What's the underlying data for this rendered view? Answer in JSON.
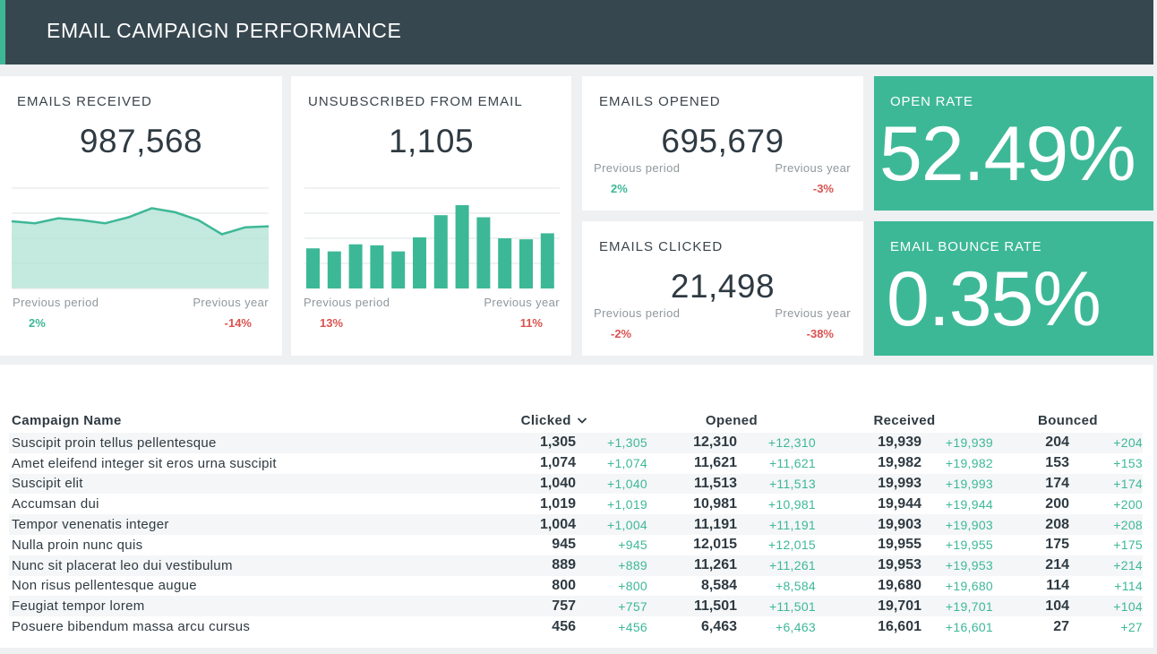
{
  "header": {
    "title": "EMAIL CAMPAIGN PERFORMANCE"
  },
  "colors": {
    "accent": "#3db897",
    "header_bg": "#37474f",
    "negative": "#d9534f"
  },
  "cards": {
    "received": {
      "label": "EMAILS RECEIVED",
      "value": "987,568",
      "prev_period_label": "Previous period",
      "prev_period_value": "2%",
      "prev_year_label": "Previous year",
      "prev_year_value": "-14%"
    },
    "unsubscribed": {
      "label": "UNSUBSCRIBED FROM EMAIL",
      "value": "1,105",
      "prev_period_label": "Previous period",
      "prev_period_value": "13%",
      "prev_year_label": "Previous year",
      "prev_year_value": "11%"
    },
    "opened": {
      "label": "EMAILS OPENED",
      "value": "695,679",
      "prev_period_label": "Previous period",
      "prev_period_value": "2%",
      "prev_year_label": "Previous year",
      "prev_year_value": "-3%"
    },
    "clicked": {
      "label": "EMAILS CLICKED",
      "value": "21,498",
      "prev_period_label": "Previous period",
      "prev_period_value": "-2%",
      "prev_year_label": "Previous year",
      "prev_year_value": "-38%"
    },
    "open_rate": {
      "label": "OPEN RATE",
      "value": "52.49%"
    },
    "bounce_rate": {
      "label": "EMAIL BOUNCE RATE",
      "value": "0.35%"
    }
  },
  "chart_data": [
    {
      "type": "area",
      "x": [
        1,
        2,
        3,
        4,
        5,
        6,
        7,
        8,
        9,
        10,
        11,
        12
      ],
      "values": [
        67,
        65,
        70,
        68,
        65,
        71,
        80,
        76,
        68,
        54,
        61,
        62
      ],
      "ylim": [
        0,
        100
      ]
    },
    {
      "type": "bar",
      "x": [
        1,
        2,
        3,
        4,
        5,
        6,
        7,
        8,
        9,
        10,
        11,
        12
      ],
      "values": [
        40,
        37,
        44,
        43,
        37,
        51,
        73,
        83,
        71,
        50,
        49,
        55
      ],
      "ylim": [
        0,
        100
      ]
    }
  ],
  "table": {
    "columns": {
      "name": "Campaign Name",
      "clicked": "Clicked",
      "opened": "Opened",
      "received": "Received",
      "bounced": "Bounced"
    },
    "sort_icon": "chevron-down-icon",
    "rows": [
      {
        "name": "Suscipit proin tellus pellentesque",
        "clicked": "1,305",
        "clicked_delta": "+1,305",
        "opened": "12,310",
        "opened_delta": "+12,310",
        "received": "19,939",
        "received_delta": "+19,939",
        "bounced": "204",
        "bounced_delta": "+204"
      },
      {
        "name": "Amet eleifend integer sit eros urna suscipit",
        "clicked": "1,074",
        "clicked_delta": "+1,074",
        "opened": "11,621",
        "opened_delta": "+11,621",
        "received": "19,982",
        "received_delta": "+19,982",
        "bounced": "153",
        "bounced_delta": "+153"
      },
      {
        "name": "Suscipit elit",
        "clicked": "1,040",
        "clicked_delta": "+1,040",
        "opened": "11,513",
        "opened_delta": "+11,513",
        "received": "19,993",
        "received_delta": "+19,993",
        "bounced": "174",
        "bounced_delta": "+174"
      },
      {
        "name": "Accumsan dui",
        "clicked": "1,019",
        "clicked_delta": "+1,019",
        "opened": "10,981",
        "opened_delta": "+10,981",
        "received": "19,944",
        "received_delta": "+19,944",
        "bounced": "200",
        "bounced_delta": "+200"
      },
      {
        "name": "Tempor venenatis integer",
        "clicked": "1,004",
        "clicked_delta": "+1,004",
        "opened": "11,191",
        "opened_delta": "+11,191",
        "received": "19,903",
        "received_delta": "+19,903",
        "bounced": "208",
        "bounced_delta": "+208"
      },
      {
        "name": "Nulla proin nunc quis",
        "clicked": "945",
        "clicked_delta": "+945",
        "opened": "12,015",
        "opened_delta": "+12,015",
        "received": "19,955",
        "received_delta": "+19,955",
        "bounced": "175",
        "bounced_delta": "+175"
      },
      {
        "name": "Nunc sit placerat leo dui vestibulum",
        "clicked": "889",
        "clicked_delta": "+889",
        "opened": "11,261",
        "opened_delta": "+11,261",
        "received": "19,953",
        "received_delta": "+19,953",
        "bounced": "214",
        "bounced_delta": "+214"
      },
      {
        "name": "Non risus pellentesque augue",
        "clicked": "800",
        "clicked_delta": "+800",
        "opened": "8,584",
        "opened_delta": "+8,584",
        "received": "19,680",
        "received_delta": "+19,680",
        "bounced": "114",
        "bounced_delta": "+114"
      },
      {
        "name": "Feugiat tempor lorem",
        "clicked": "757",
        "clicked_delta": "+757",
        "opened": "11,501",
        "opened_delta": "+11,501",
        "received": "19,701",
        "received_delta": "+19,701",
        "bounced": "104",
        "bounced_delta": "+104"
      },
      {
        "name": "Posuere bibendum massa arcu cursus",
        "clicked": "456",
        "clicked_delta": "+456",
        "opened": "6,463",
        "opened_delta": "+6,463",
        "received": "16,601",
        "received_delta": "+16,601",
        "bounced": "27",
        "bounced_delta": "+27"
      }
    ]
  }
}
